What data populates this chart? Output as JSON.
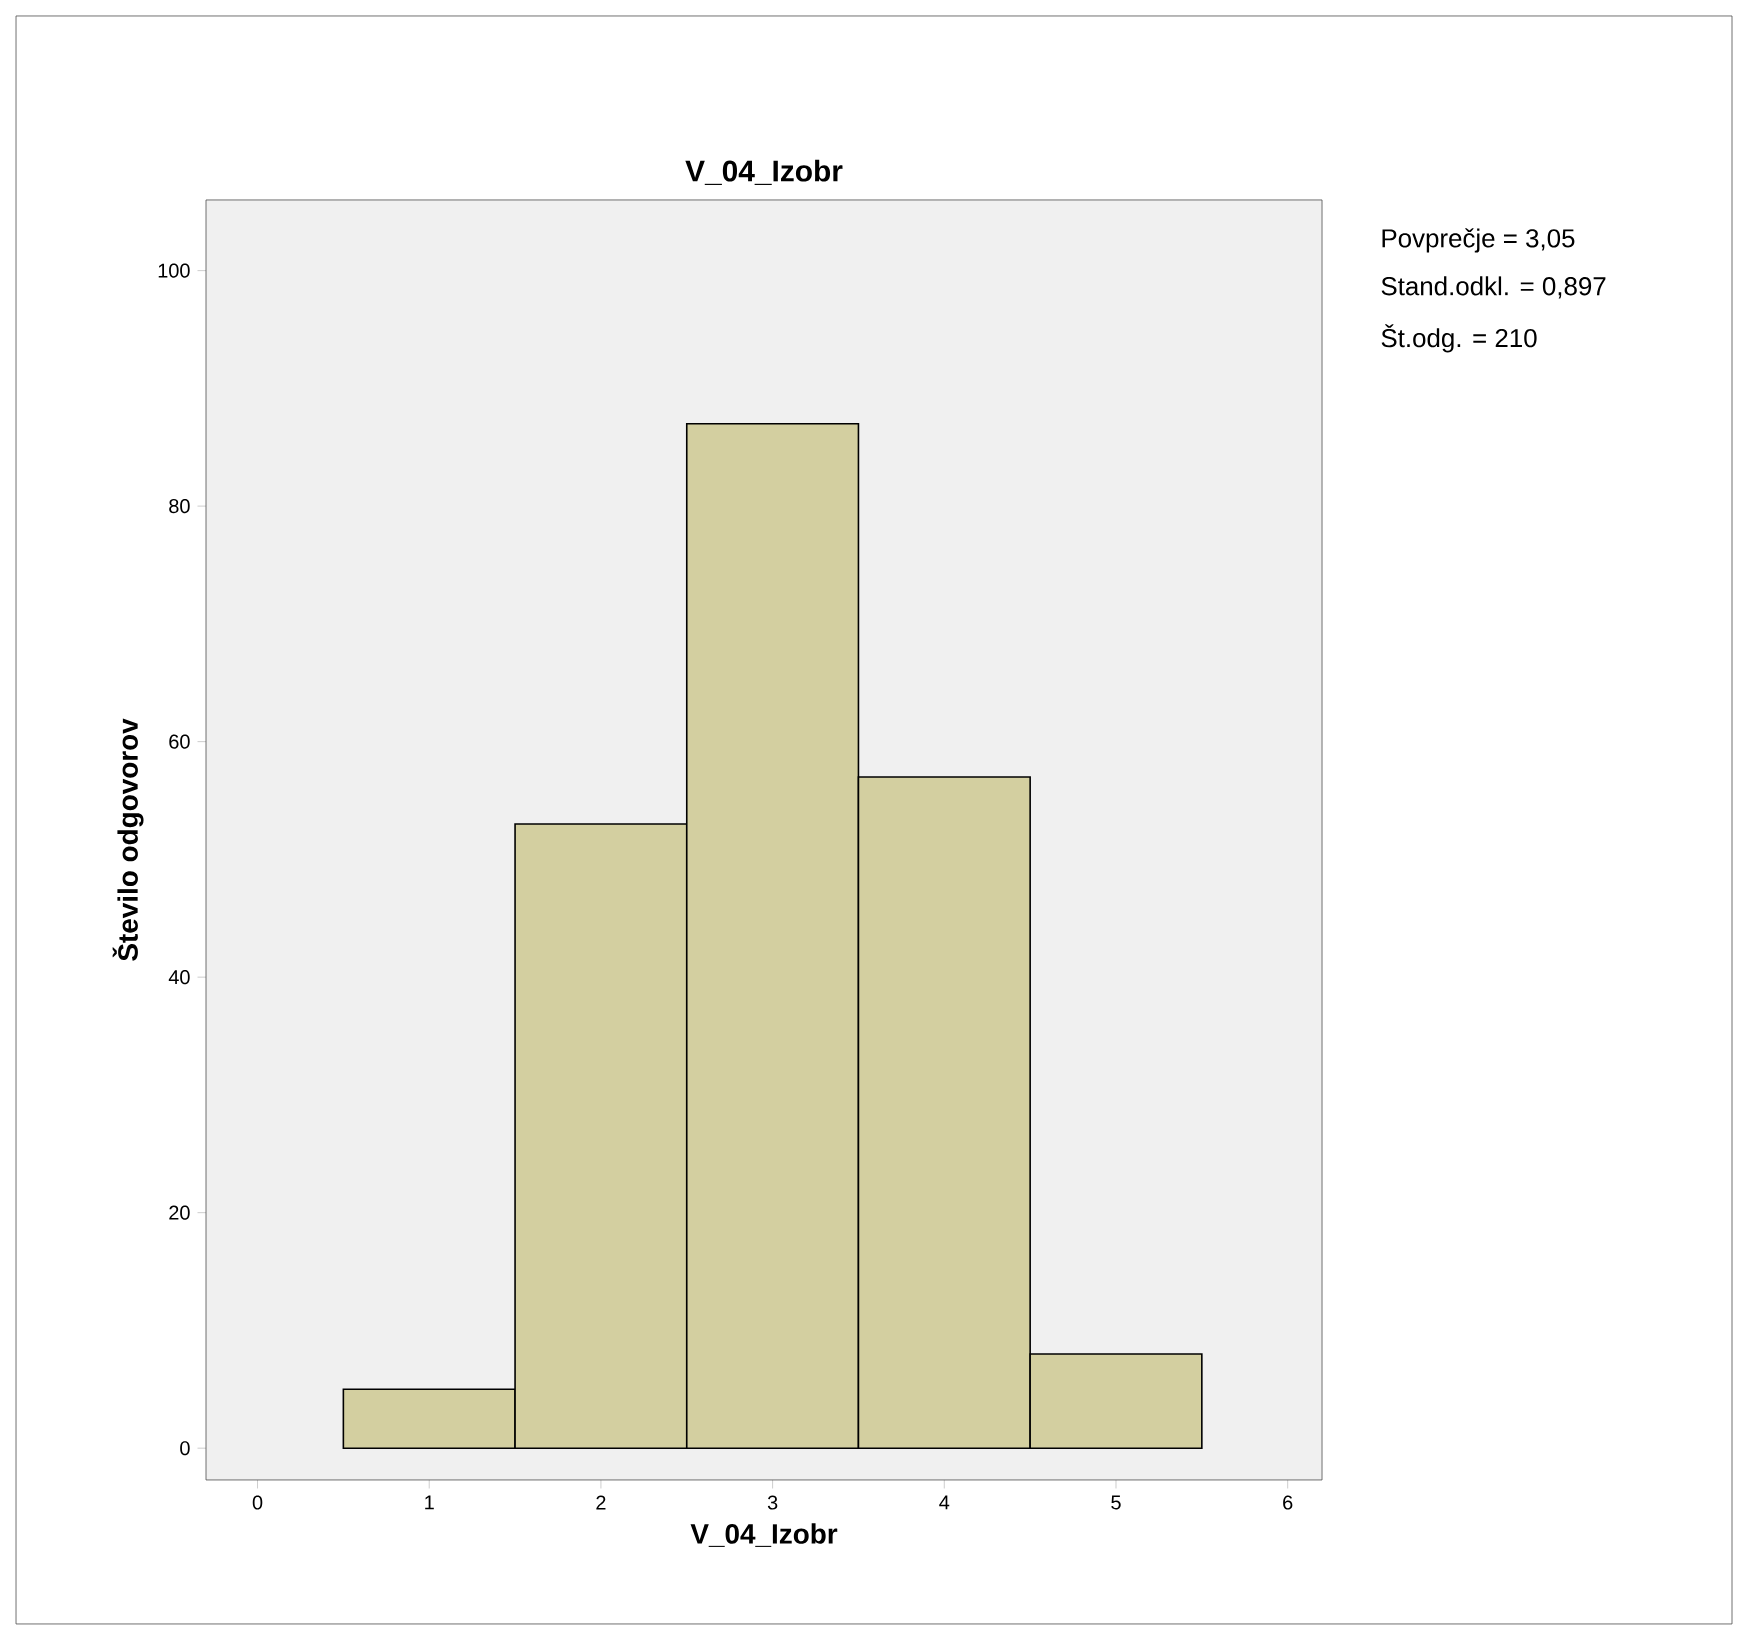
{
  "chart_data": {
    "type": "histogram",
    "title": "V_04_Izobr",
    "xlabel": "V_04_Izobr",
    "ylabel": "Število odgovorov",
    "bins": [
      0.5,
      1.5,
      2.5,
      3.5,
      4.5,
      5.5
    ],
    "values": [
      5,
      53,
      87,
      57,
      8
    ],
    "color": "#d3cfa0",
    "xlim": [
      -0.3,
      6.2
    ],
    "ylim": [
      -2.7,
      106
    ],
    "xticks": [
      0,
      1,
      2,
      3,
      4,
      5,
      6
    ],
    "yticks": [
      0,
      20,
      40,
      60,
      80,
      100
    ],
    "annotations": [
      "Povprečje = 3,05",
      "Stand.odkl. = 0,897",
      "Št.odg. = 210"
    ]
  }
}
